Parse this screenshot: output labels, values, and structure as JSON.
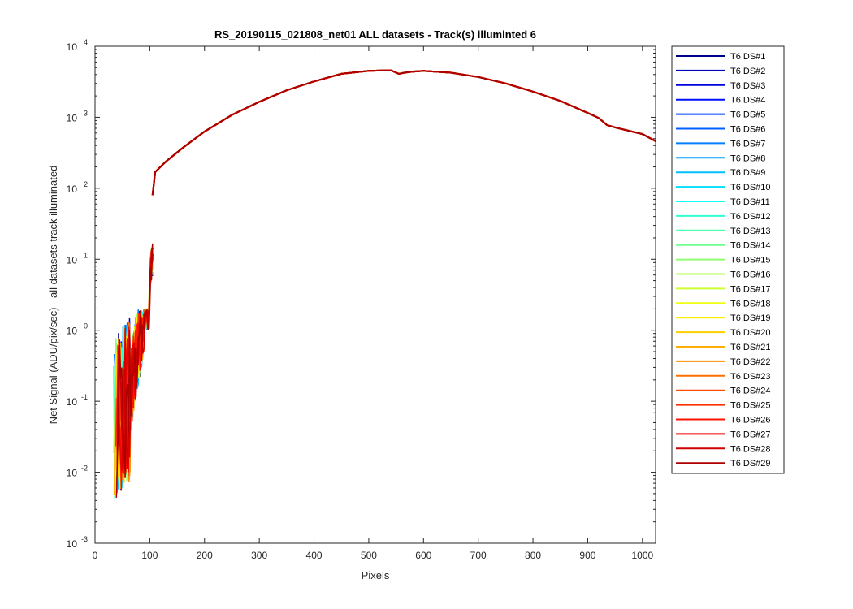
{
  "chart_data": {
    "type": "line",
    "title": "RS_20190115_021808_net01 ALL datasets - Track(s) illuminted 6",
    "xlabel": "Pixels",
    "ylabel": "Net Signal (ADU/pix/sec) - all datasets track illuminated",
    "xlim": [
      0,
      1024
    ],
    "ylim": [
      0.001,
      10000
    ],
    "yscale": "log",
    "grid": false,
    "legend_position": "outside-right",
    "x_ticks": [
      "0",
      "100",
      "200",
      "300",
      "400",
      "500",
      "600",
      "700",
      "800",
      "900",
      "1000"
    ],
    "y_ticks": [
      {
        "base": "10",
        "exp": "-3"
      },
      {
        "base": "10",
        "exp": "-2"
      },
      {
        "base": "10",
        "exp": "-1"
      },
      {
        "base": "10",
        "exp": "0"
      },
      {
        "base": "10",
        "exp": "1"
      },
      {
        "base": "10",
        "exp": "2"
      },
      {
        "base": "10",
        "exp": "3"
      },
      {
        "base": "10",
        "exp": "4"
      }
    ],
    "main_curve": {
      "x": [
        105,
        110,
        130,
        160,
        200,
        250,
        300,
        350,
        400,
        450,
        500,
        540,
        555,
        565,
        580,
        600,
        650,
        700,
        750,
        800,
        850,
        900,
        920,
        935,
        950,
        1000,
        1024
      ],
      "y": [
        80,
        170,
        240,
        370,
        630,
        1080,
        1650,
        2400,
        3200,
        4100,
        4500,
        4600,
        4100,
        4250,
        4400,
        4500,
        4250,
        3700,
        3000,
        2300,
        1700,
        1150,
        980,
        780,
        720,
        580,
        460
      ]
    },
    "series": [
      {
        "name": "T6 DS#1",
        "color": "#00008f"
      },
      {
        "name": "T6 DS#2",
        "color": "#0000b8"
      },
      {
        "name": "T6 DS#3",
        "color": "#0000e0"
      },
      {
        "name": "T6 DS#4",
        "color": "#0010ff"
      },
      {
        "name": "T6 DS#5",
        "color": "#0040ff"
      },
      {
        "name": "T6 DS#6",
        "color": "#0060ff"
      },
      {
        "name": "T6 DS#7",
        "color": "#0080ff"
      },
      {
        "name": "T6 DS#8",
        "color": "#00a0ff"
      },
      {
        "name": "T6 DS#9",
        "color": "#00c0ff"
      },
      {
        "name": "T6 DS#10",
        "color": "#00e0ff"
      },
      {
        "name": "T6 DS#11",
        "color": "#10ffef"
      },
      {
        "name": "T6 DS#12",
        "color": "#30ffcf"
      },
      {
        "name": "T6 DS#13",
        "color": "#50ffaf"
      },
      {
        "name": "T6 DS#14",
        "color": "#70ff8f"
      },
      {
        "name": "T6 DS#15",
        "color": "#90ff6f"
      },
      {
        "name": "T6 DS#16",
        "color": "#b0ff4f"
      },
      {
        "name": "T6 DS#17",
        "color": "#cfff30"
      },
      {
        "name": "T6 DS#18",
        "color": "#efff10"
      },
      {
        "name": "T6 DS#19",
        "color": "#ffef00"
      },
      {
        "name": "T6 DS#20",
        "color": "#ffcf00"
      },
      {
        "name": "T6 DS#21",
        "color": "#ffaf00"
      },
      {
        "name": "T6 DS#22",
        "color": "#ff9000"
      },
      {
        "name": "T6 DS#23",
        "color": "#ff7000"
      },
      {
        "name": "T6 DS#24",
        "color": "#ff5000"
      },
      {
        "name": "T6 DS#25",
        "color": "#ff3000"
      },
      {
        "name": "T6 DS#26",
        "color": "#ff1000"
      },
      {
        "name": "T6 DS#27",
        "color": "#ef0000"
      },
      {
        "name": "T6 DS#28",
        "color": "#cf0000"
      },
      {
        "name": "T6 DS#29",
        "color": "#af0000"
      }
    ]
  }
}
